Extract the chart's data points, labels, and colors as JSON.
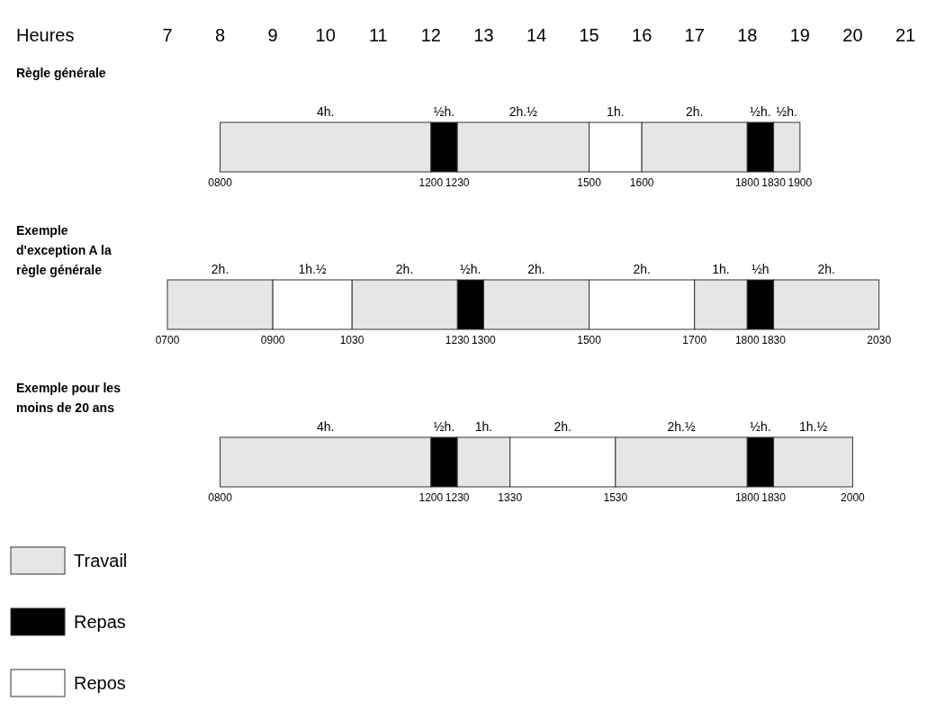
{
  "chart_data": {
    "type": "bar",
    "orientation": "horizontal",
    "xlabel": "Heures",
    "xlim": [
      7,
      21
    ],
    "xticks": [
      7,
      8,
      9,
      10,
      11,
      12,
      13,
      14,
      15,
      16,
      17,
      18,
      19,
      20,
      21
    ],
    "categories": [
      "Règle générale",
      "Exemple d'exception A la règle générale",
      "Exemple pour les moins de 20 ans"
    ],
    "legend": "bottom left",
    "series": [
      {
        "name": "Travail",
        "color": "#e6e6e6",
        "values": [
          4,
          2,
          4
        ],
        "base": [
          8,
          7,
          8
        ],
        "value_labels": [
          "4h.",
          "2h.",
          "4h."
        ]
      },
      {
        "name": "Repas",
        "color": "#000000",
        "values": [
          0.5,
          0.5,
          0.5
        ],
        "base": [
          12,
          12.5,
          12
        ],
        "value_labels": [
          "½h.",
          "½h.",
          "½h."
        ]
      },
      {
        "color": "#e6e6e6",
        "values": [
          2.5,
          2,
          1
        ],
        "base": [
          12.5,
          10.5,
          12.5
        ],
        "value_labels": [
          "2h.½",
          "2h.",
          "1h."
        ]
      },
      {
        "name": "Repos",
        "color": "#ffffff",
        "values": [
          1,
          1.5,
          2
        ],
        "base": [
          15,
          9,
          13.5
        ],
        "value_labels": [
          "1h.",
          "1h.½",
          "2h."
        ]
      },
      {
        "color": "#e6e6e6",
        "values": [
          2,
          2,
          2.5
        ],
        "base": [
          16,
          13,
          15.5
        ],
        "value_labels": [
          "2h.",
          "2h.",
          "2h.½"
        ]
      },
      {
        "color": "#ffffff",
        "values": [
          null,
          2,
          null
        ],
        "base": [
          null,
          15,
          null
        ],
        "value_labels": [
          null,
          "2h.",
          null
        ]
      },
      {
        "color": "#e6e6e6",
        "values": [
          null,
          1,
          null
        ],
        "base": [
          null,
          17,
          null
        ],
        "value_labels": [
          null,
          "1h.",
          null
        ]
      },
      {
        "color": "#000000",
        "values": [
          0.5,
          0.5,
          0.5
        ],
        "base": [
          18,
          18,
          18
        ],
        "value_labels": [
          "½h.",
          "½h",
          "½h."
        ]
      },
      {
        "color": "#e6e6e6",
        "values": [
          0.5,
          2,
          1.5
        ],
        "base": [
          18.5,
          18.5,
          18.5
        ],
        "value_labels": [
          "½h.",
          "2h.",
          "1h.½"
        ]
      }
    ],
    "annotations": [
      {
        "text": "0800",
        "x": 8,
        "y": "Règle générale"
      },
      {
        "text": "1200",
        "x": 12,
        "y": "Règle générale"
      },
      {
        "text": "1230",
        "x": 12.5,
        "y": "Règle générale"
      },
      {
        "text": "1500",
        "x": 15,
        "y": "Règle générale"
      },
      {
        "text": "1600",
        "x": 16,
        "y": "Règle générale"
      },
      {
        "text": "1800",
        "x": 18,
        "y": "Règle générale"
      },
      {
        "text": "1830",
        "x": 18.5,
        "y": "Règle générale"
      },
      {
        "text": "1900",
        "x": 19,
        "y": "Règle générale"
      },
      {
        "text": "0700",
        "x": 7,
        "y": "Exemple d'exception A la règle générale"
      },
      {
        "text": "0900",
        "x": 9,
        "y": "Exemple d'exception A la règle générale"
      },
      {
        "text": "1030",
        "x": 10.5,
        "y": "Exemple d'exception A la règle générale"
      },
      {
        "text": "1230",
        "x": 12.5,
        "y": "Exemple d'exception A la règle générale"
      },
      {
        "text": "1300",
        "x": 13,
        "y": "Exemple d'exception A la règle générale"
      },
      {
        "text": "1500",
        "x": 15,
        "y": "Exemple d'exception A la règle générale"
      },
      {
        "text": "1700",
        "x": 17,
        "y": "Exemple d'exception A la règle générale"
      },
      {
        "text": "1800",
        "x": 18,
        "y": "Exemple d'exception A la règle générale"
      },
      {
        "text": "1830",
        "x": 18.5,
        "y": "Exemple d'exception A la règle générale"
      },
      {
        "text": "2030",
        "x": 20.5,
        "y": "Exemple d'exception A la règle générale"
      },
      {
        "text": "0800",
        "x": 8,
        "y": "Exemple pour les moins de 20 ans"
      },
      {
        "text": "1200",
        "x": 12,
        "y": "Exemple pour les moins de 20 ans"
      },
      {
        "text": "1230",
        "x": 12.5,
        "y": "Exemple pour les moins de 20 ans"
      },
      {
        "text": "1330",
        "x": 13.5,
        "y": "Exemple pour les moins de 20 ans"
      },
      {
        "text": "1530",
        "x": 15.5,
        "y": "Exemple pour les moins de 20 ans"
      },
      {
        "text": "1800",
        "x": 18,
        "y": "Exemple pour les moins de 20 ans"
      },
      {
        "text": "1830",
        "x": 18.5,
        "y": "Exemple pour les moins de 20 ans"
      },
      {
        "text": "2000",
        "x": 20,
        "y": "Exemple pour les moins de 20 ans"
      }
    ]
  }
}
